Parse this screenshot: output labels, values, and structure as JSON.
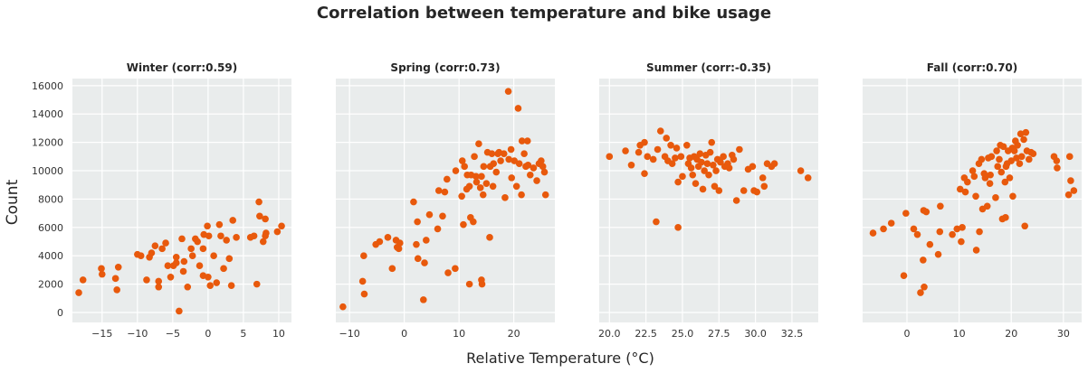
{
  "chart_data": {
    "type": "scatter",
    "title": "Correlation between temperature and bike usage",
    "xlabel": "Relative Temperature (°C)",
    "ylabel": "Count",
    "shared_y": true,
    "ylim": [
      -700,
      16500
    ],
    "yticks": [
      0,
      2000,
      4000,
      6000,
      8000,
      10000,
      12000,
      14000,
      16000
    ],
    "grid": true,
    "marker_color": "#e8590c",
    "panel_background": "#e9ecec",
    "panels": [
      {
        "title": "Winter (corr:0.59)",
        "xlim": [
          -19.2,
          11.8
        ],
        "xticks": [
          -15,
          -10,
          -5,
          0,
          5,
          10
        ],
        "points": [
          [
            -18.3,
            1400
          ],
          [
            -17.7,
            2300
          ],
          [
            -15.1,
            3100
          ],
          [
            -15.0,
            2700
          ],
          [
            -13.1,
            2400
          ],
          [
            -12.7,
            3200
          ],
          [
            -12.9,
            1600
          ],
          [
            -10.0,
            4100
          ],
          [
            -9.5,
            4000
          ],
          [
            -8.7,
            2300
          ],
          [
            -8.3,
            3900
          ],
          [
            -8.0,
            4200
          ],
          [
            -7.5,
            4700
          ],
          [
            -7.0,
            2200
          ],
          [
            -7.0,
            1800
          ],
          [
            -6.5,
            4500
          ],
          [
            -6.0,
            4900
          ],
          [
            -5.7,
            3300
          ],
          [
            -5.3,
            2500
          ],
          [
            -4.9,
            3300
          ],
          [
            -4.5,
            3500
          ],
          [
            -4.5,
            3900
          ],
          [
            -4.1,
            100
          ],
          [
            -3.7,
            5200
          ],
          [
            -3.5,
            2900
          ],
          [
            -3.4,
            3600
          ],
          [
            -2.9,
            1800
          ],
          [
            -2.4,
            4500
          ],
          [
            -2.2,
            4000
          ],
          [
            -1.8,
            5200
          ],
          [
            -1.5,
            5000
          ],
          [
            -1.2,
            3300
          ],
          [
            -0.7,
            2600
          ],
          [
            -0.7,
            4500
          ],
          [
            -0.6,
            5500
          ],
          [
            0.0,
            2500
          ],
          [
            -0.1,
            6100
          ],
          [
            0.1,
            5400
          ],
          [
            0.3,
            1900
          ],
          [
            0.8,
            4000
          ],
          [
            1.2,
            2100
          ],
          [
            1.8,
            5400
          ],
          [
            1.6,
            6200
          ],
          [
            2.2,
            3100
          ],
          [
            2.6,
            5100
          ],
          [
            3.0,
            3800
          ],
          [
            3.3,
            1900
          ],
          [
            3.5,
            6500
          ],
          [
            4.0,
            5300
          ],
          [
            6.0,
            5300
          ],
          [
            6.5,
            5400
          ],
          [
            6.9,
            2000
          ],
          [
            7.2,
            7800
          ],
          [
            7.3,
            6800
          ],
          [
            7.8,
            5000
          ],
          [
            8.1,
            5400
          ],
          [
            8.2,
            5600
          ],
          [
            8.1,
            6600
          ],
          [
            9.8,
            5700
          ],
          [
            10.4,
            6100
          ]
        ]
      },
      {
        "title": "Spring (corr:0.73)",
        "xlim": [
          -12.5,
          27.5
        ],
        "xticks": [
          -10,
          0,
          10,
          20
        ],
        "points": [
          [
            -11.2,
            400
          ],
          [
            -7.6,
            2200
          ],
          [
            -7.3,
            1300
          ],
          [
            -7.4,
            4000
          ],
          [
            -5.2,
            4800
          ],
          [
            -4.5,
            5000
          ],
          [
            -3.0,
            5300
          ],
          [
            -2.2,
            3100
          ],
          [
            -1.5,
            5100
          ],
          [
            -1.3,
            4600
          ],
          [
            -1.0,
            4500
          ],
          [
            -0.8,
            4900
          ],
          [
            1.7,
            7800
          ],
          [
            2.2,
            4800
          ],
          [
            2.5,
            3800
          ],
          [
            2.4,
            6400
          ],
          [
            3.5,
            900
          ],
          [
            3.7,
            3500
          ],
          [
            4.0,
            5100
          ],
          [
            4.6,
            6900
          ],
          [
            6.1,
            5900
          ],
          [
            6.3,
            8600
          ],
          [
            7.0,
            6800
          ],
          [
            7.4,
            8500
          ],
          [
            7.8,
            9400
          ],
          [
            8.0,
            2800
          ],
          [
            9.3,
            3100
          ],
          [
            9.4,
            10000
          ],
          [
            10.5,
            8200
          ],
          [
            10.6,
            10700
          ],
          [
            10.8,
            6200
          ],
          [
            11.0,
            10300
          ],
          [
            11.4,
            8700
          ],
          [
            11.5,
            9700
          ],
          [
            11.9,
            2000
          ],
          [
            11.9,
            8900
          ],
          [
            12.1,
            6700
          ],
          [
            12.2,
            9700
          ],
          [
            12.6,
            6400
          ],
          [
            12.8,
            11000
          ],
          [
            13.1,
            9600
          ],
          [
            13.2,
            9200
          ],
          [
            13.6,
            11900
          ],
          [
            13.9,
            8800
          ],
          [
            14.2,
            2000
          ],
          [
            14.1,
            2300
          ],
          [
            14.1,
            9600
          ],
          [
            14.4,
            8300
          ],
          [
            14.5,
            10300
          ],
          [
            15.0,
            9100
          ],
          [
            15.2,
            11300
          ],
          [
            15.6,
            5300
          ],
          [
            15.7,
            10300
          ],
          [
            16.0,
            11200
          ],
          [
            16.2,
            8900
          ],
          [
            16.3,
            10500
          ],
          [
            16.8,
            9900
          ],
          [
            17.1,
            11200
          ],
          [
            17.3,
            11300
          ],
          [
            17.6,
            10700
          ],
          [
            18.2,
            11200
          ],
          [
            18.4,
            8100
          ],
          [
            19.0,
            15600
          ],
          [
            19.1,
            10800
          ],
          [
            19.5,
            11500
          ],
          [
            19.6,
            9500
          ],
          [
            20.1,
            10700
          ],
          [
            20.5,
            8900
          ],
          [
            20.8,
            14400
          ],
          [
            21.0,
            10500
          ],
          [
            21.5,
            12100
          ],
          [
            21.4,
            8300
          ],
          [
            21.9,
            11200
          ],
          [
            22.2,
            10300
          ],
          [
            22.5,
            12100
          ],
          [
            22.6,
            10400
          ],
          [
            23.0,
            9700
          ],
          [
            23.6,
            10200
          ],
          [
            24.2,
            9300
          ],
          [
            24.6,
            10500
          ],
          [
            25.0,
            10700
          ],
          [
            25.3,
            10300
          ],
          [
            25.6,
            9900
          ],
          [
            25.8,
            8300
          ]
        ]
      },
      {
        "title": "Summer (corr:-0.35)",
        "xlim": [
          19.3,
          34.3
        ],
        "xticks": [
          20.0,
          22.5,
          25.0,
          27.5,
          30.0,
          32.5
        ],
        "tick_decimals": 1,
        "points": [
          [
            20.0,
            11000
          ],
          [
            21.1,
            11400
          ],
          [
            21.5,
            10400
          ],
          [
            22.0,
            11300
          ],
          [
            22.1,
            11800
          ],
          [
            22.4,
            12000
          ],
          [
            22.4,
            9800
          ],
          [
            22.6,
            11000
          ],
          [
            23.0,
            10800
          ],
          [
            23.2,
            6400
          ],
          [
            23.3,
            11500
          ],
          [
            23.5,
            12800
          ],
          [
            23.8,
            11000
          ],
          [
            23.9,
            12300
          ],
          [
            24.0,
            10700
          ],
          [
            24.2,
            11800
          ],
          [
            24.3,
            10500
          ],
          [
            24.5,
            10900
          ],
          [
            24.6,
            11600
          ],
          [
            24.7,
            9200
          ],
          [
            24.7,
            6000
          ],
          [
            24.9,
            11000
          ],
          [
            25.0,
            9600
          ],
          [
            25.3,
            11800
          ],
          [
            25.4,
            10500
          ],
          [
            25.5,
            10900
          ],
          [
            25.6,
            10200
          ],
          [
            25.7,
            9700
          ],
          [
            25.8,
            11000
          ],
          [
            26.0,
            10800
          ],
          [
            25.9,
            9100
          ],
          [
            26.1,
            10300
          ],
          [
            26.2,
            11200
          ],
          [
            26.3,
            10600
          ],
          [
            26.4,
            8700
          ],
          [
            26.5,
            10000
          ],
          [
            26.6,
            11100
          ],
          [
            26.7,
            10500
          ],
          [
            26.8,
            9700
          ],
          [
            26.9,
            11300
          ],
          [
            27.0,
            12000
          ],
          [
            27.1,
            10400
          ],
          [
            27.2,
            8900
          ],
          [
            27.3,
            10000
          ],
          [
            27.4,
            10800
          ],
          [
            27.5,
            8600
          ],
          [
            27.6,
            10600
          ],
          [
            27.8,
            11000
          ],
          [
            27.9,
            10300
          ],
          [
            28.1,
            10500
          ],
          [
            28.2,
            10200
          ],
          [
            28.4,
            11100
          ],
          [
            28.5,
            10800
          ],
          [
            28.7,
            7900
          ],
          [
            28.9,
            11500
          ],
          [
            29.2,
            8600
          ],
          [
            29.5,
            10100
          ],
          [
            29.8,
            10300
          ],
          [
            29.9,
            8600
          ],
          [
            30.1,
            8500
          ],
          [
            30.5,
            9500
          ],
          [
            30.6,
            8900
          ],
          [
            30.8,
            10500
          ],
          [
            31.1,
            10300
          ],
          [
            31.3,
            10500
          ],
          [
            33.1,
            10000
          ],
          [
            33.6,
            9500
          ]
        ]
      },
      {
        "title": "Fall (corr:0.70)",
        "xlim": [
          -8.5,
          33.5
        ],
        "xticks": [
          0,
          10,
          20,
          30
        ],
        "points": [
          [
            -6.5,
            5600
          ],
          [
            -4.5,
            5900
          ],
          [
            -3.0,
            6300
          ],
          [
            -0.6,
            2600
          ],
          [
            -0.2,
            7000
          ],
          [
            1.3,
            5900
          ],
          [
            2.0,
            5500
          ],
          [
            2.6,
            1400
          ],
          [
            3.3,
            1800
          ],
          [
            3.1,
            3700
          ],
          [
            3.2,
            7200
          ],
          [
            3.7,
            7100
          ],
          [
            4.4,
            4800
          ],
          [
            6.0,
            4100
          ],
          [
            6.3,
            5700
          ],
          [
            6.4,
            7500
          ],
          [
            8.7,
            5500
          ],
          [
            9.6,
            5900
          ],
          [
            10.2,
            8700
          ],
          [
            10.4,
            5000
          ],
          [
            10.6,
            6000
          ],
          [
            11.0,
            9500
          ],
          [
            11.2,
            8500
          ],
          [
            11.6,
            9200
          ],
          [
            12.6,
            10000
          ],
          [
            12.9,
            9600
          ],
          [
            13.2,
            8200
          ],
          [
            13.3,
            4400
          ],
          [
            13.8,
            10500
          ],
          [
            13.9,
            5700
          ],
          [
            14.3,
            10800
          ],
          [
            14.5,
            7300
          ],
          [
            14.8,
            9800
          ],
          [
            15.0,
            9500
          ],
          [
            15.4,
            7500
          ],
          [
            15.6,
            10900
          ],
          [
            15.9,
            9100
          ],
          [
            16.0,
            9700
          ],
          [
            16.2,
            11000
          ],
          [
            17.0,
            8100
          ],
          [
            17.2,
            11400
          ],
          [
            17.4,
            10300
          ],
          [
            17.7,
            10800
          ],
          [
            17.9,
            11800
          ],
          [
            18.1,
            9900
          ],
          [
            18.3,
            6600
          ],
          [
            18.5,
            11700
          ],
          [
            18.8,
            9200
          ],
          [
            18.9,
            6700
          ],
          [
            19.0,
            10300
          ],
          [
            19.2,
            10500
          ],
          [
            19.4,
            11400
          ],
          [
            19.7,
            9500
          ],
          [
            20.0,
            10700
          ],
          [
            20.2,
            11600
          ],
          [
            20.3,
            8200
          ],
          [
            20.6,
            11400
          ],
          [
            20.8,
            12100
          ],
          [
            21.0,
            10900
          ],
          [
            21.2,
            11800
          ],
          [
            21.6,
            10500
          ],
          [
            21.8,
            12600
          ],
          [
            22.0,
            11000
          ],
          [
            22.4,
            12200
          ],
          [
            22.6,
            6100
          ],
          [
            22.8,
            12700
          ],
          [
            23.0,
            11400
          ],
          [
            23.4,
            10800
          ],
          [
            23.8,
            11300
          ],
          [
            24.2,
            11200
          ],
          [
            28.2,
            11000
          ],
          [
            28.7,
            10700
          ],
          [
            28.8,
            10200
          ],
          [
            31.0,
            8300
          ],
          [
            31.2,
            11000
          ],
          [
            31.4,
            9300
          ],
          [
            32.0,
            8600
          ]
        ]
      }
    ]
  }
}
